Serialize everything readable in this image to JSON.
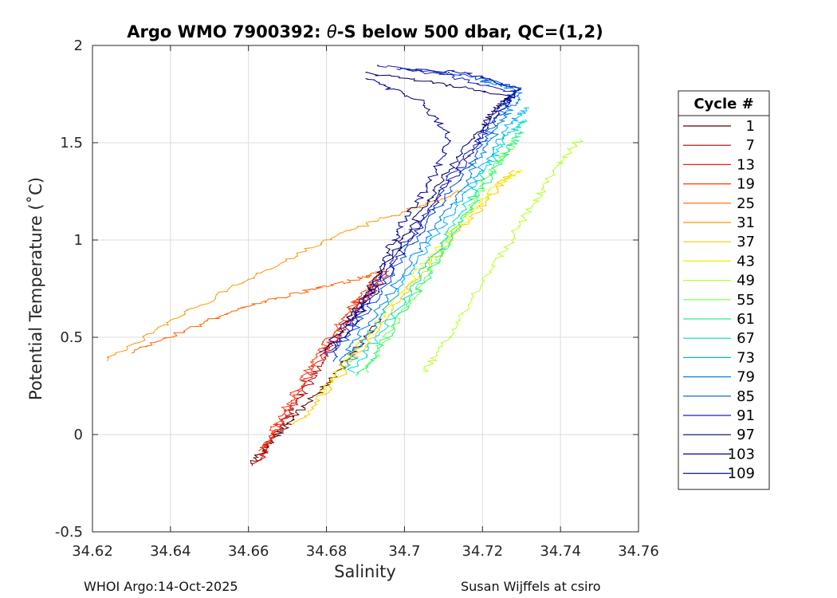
{
  "chart_data": {
    "type": "line",
    "title_prefix": "Argo WMO 7900392: ",
    "title_theta": "θ",
    "title_suffix": "-S below 500 dbar,  QC=(1,2)",
    "xlabel": "Salinity",
    "ylabel": "Potential Temperature (˚C)",
    "xlim": [
      34.62,
      34.76
    ],
    "ylim": [
      -0.5,
      2
    ],
    "xticks": [
      "34.62",
      "34.64",
      "34.66",
      "34.68",
      "34.7",
      "34.72",
      "34.74",
      "34.76"
    ],
    "xtick_values": [
      34.62,
      34.64,
      34.66,
      34.68,
      34.7,
      34.72,
      34.74,
      34.76
    ],
    "yticks": [
      "-0.5",
      "0",
      "0.5",
      "1",
      "1.5",
      "2"
    ],
    "ytick_values": [
      -0.5,
      0,
      0.5,
      1,
      1.5,
      2
    ],
    "grid": true,
    "legend": {
      "title": "Cycle #",
      "placement": "right",
      "entries": [
        {
          "label": "1",
          "color": "#5a0000"
        },
        {
          "label": "7",
          "color": "#b40000"
        },
        {
          "label": "13",
          "color": "#e61e1e"
        },
        {
          "label": "19",
          "color": "#ff3a00"
        },
        {
          "label": "25",
          "color": "#ff6400"
        },
        {
          "label": "31",
          "color": "#ff9600"
        },
        {
          "label": "37",
          "color": "#ffc800"
        },
        {
          "label": "43",
          "color": "#f0f000"
        },
        {
          "label": "49",
          "color": "#b4ff28"
        },
        {
          "label": "55",
          "color": "#6eff46"
        },
        {
          "label": "61",
          "color": "#28f08c"
        },
        {
          "label": "67",
          "color": "#00dcc8"
        },
        {
          "label": "73",
          "color": "#00b4ff"
        },
        {
          "label": "79",
          "color": "#0082e6"
        },
        {
          "label": "85",
          "color": "#0050dc"
        },
        {
          "label": "91",
          "color": "#1e1eb4"
        },
        {
          "label": "97",
          "color": "#000064"
        },
        {
          "label": "103",
          "color": "#00008c"
        },
        {
          "label": "109",
          "color": "#0a14a0"
        }
      ]
    },
    "series": [
      {
        "name": "1",
        "color": "#5a0000",
        "salinity": [
          34.661,
          34.665,
          34.67,
          34.676,
          34.682,
          34.688,
          34.694
        ],
        "theta": [
          -0.15,
          -0.05,
          0.05,
          0.18,
          0.3,
          0.45,
          0.6
        ]
      },
      {
        "name": "7",
        "color": "#b40000",
        "salinity": [
          34.662,
          34.666,
          34.671,
          34.676,
          34.681,
          34.687,
          34.693
        ],
        "theta": [
          -0.16,
          -0.02,
          0.12,
          0.28,
          0.45,
          0.62,
          0.78
        ]
      },
      {
        "name": "13",
        "color": "#e61e1e",
        "salinity": [
          34.663,
          34.667,
          34.672,
          34.677,
          34.683,
          34.69,
          34.696
        ],
        "theta": [
          -0.12,
          0.02,
          0.18,
          0.35,
          0.52,
          0.7,
          0.84
        ]
      },
      {
        "name": "19",
        "color": "#ff3a00",
        "salinity": [
          34.664,
          34.668,
          34.674,
          34.68,
          34.686,
          34.691,
          34.694
        ],
        "theta": [
          -0.08,
          0.08,
          0.28,
          0.48,
          0.64,
          0.76,
          0.84
        ]
      },
      {
        "name": "25",
        "color": "#ff6400",
        "salinity": [
          34.63,
          34.645,
          34.66,
          34.675,
          34.688,
          34.695
        ],
        "theta": [
          0.42,
          0.55,
          0.66,
          0.74,
          0.8,
          0.84
        ]
      },
      {
        "name": "31",
        "color": "#ff9600",
        "salinity": [
          34.623,
          34.64,
          34.66,
          34.68,
          34.7,
          34.715
        ],
        "theta": [
          0.38,
          0.58,
          0.8,
          1.0,
          1.15,
          1.25
        ]
      },
      {
        "name": "37",
        "color": "#ffc800",
        "salinity": [
          34.672,
          34.68,
          34.69,
          34.7,
          34.712,
          34.722,
          34.728
        ],
        "theta": [
          0.05,
          0.22,
          0.46,
          0.72,
          1.0,
          1.22,
          1.36
        ]
      },
      {
        "name": "43",
        "color": "#f0f000",
        "salinity": [
          34.678,
          34.686,
          34.696,
          34.706,
          34.716,
          34.724,
          34.73
        ],
        "theta": [
          0.2,
          0.4,
          0.65,
          0.9,
          1.12,
          1.28,
          1.36
        ]
      },
      {
        "name": "49",
        "color": "#b4ff28",
        "salinity": [
          34.705,
          34.712,
          34.72,
          34.728,
          34.734,
          34.74,
          34.745
        ],
        "theta": [
          0.32,
          0.52,
          0.78,
          1.02,
          1.22,
          1.4,
          1.52
        ]
      },
      {
        "name": "55",
        "color": "#6eff46",
        "salinity": [
          34.69,
          34.698,
          34.707,
          34.714,
          34.72,
          34.725,
          34.728
        ],
        "theta": [
          0.32,
          0.58,
          0.85,
          1.08,
          1.28,
          1.42,
          1.5
        ]
      },
      {
        "name": "61",
        "color": "#28f08c",
        "salinity": [
          34.688,
          34.696,
          34.706,
          34.715,
          34.722,
          34.727,
          34.73
        ],
        "theta": [
          0.3,
          0.52,
          0.82,
          1.1,
          1.32,
          1.48,
          1.56
        ]
      },
      {
        "name": "67",
        "color": "#00dcc8",
        "salinity": [
          34.686,
          34.695,
          34.705,
          34.714,
          34.721,
          34.727,
          34.731
        ],
        "theta": [
          0.32,
          0.55,
          0.85,
          1.12,
          1.36,
          1.55,
          1.62
        ]
      },
      {
        "name": "73",
        "color": "#00b4ff",
        "salinity": [
          34.685,
          34.693,
          34.703,
          34.713,
          34.721,
          34.727,
          34.732
        ],
        "theta": [
          0.34,
          0.58,
          0.88,
          1.16,
          1.4,
          1.6,
          1.68
        ]
      },
      {
        "name": "79",
        "color": "#0082e6",
        "salinity": [
          34.683,
          34.692,
          34.702,
          34.712,
          34.72,
          34.726,
          34.73,
          34.72
        ],
        "theta": [
          0.36,
          0.6,
          0.9,
          1.18,
          1.44,
          1.64,
          1.76,
          1.82
        ]
      },
      {
        "name": "85",
        "color": "#0050dc",
        "salinity": [
          34.681,
          34.69,
          34.7,
          34.71,
          34.719,
          34.725,
          34.729,
          34.715,
          34.7
        ],
        "theta": [
          0.38,
          0.62,
          0.92,
          1.2,
          1.46,
          1.66,
          1.78,
          1.85,
          1.88
        ]
      },
      {
        "name": "91",
        "color": "#1e1eb4",
        "salinity": [
          34.68,
          34.689,
          34.699,
          34.709,
          34.718,
          34.724,
          34.728,
          34.712,
          34.693
        ],
        "theta": [
          0.4,
          0.64,
          0.95,
          1.24,
          1.5,
          1.68,
          1.76,
          1.84,
          1.9
        ]
      },
      {
        "name": "97",
        "color": "#000064",
        "salinity": [
          34.679,
          34.688,
          34.698,
          34.708,
          34.717,
          34.723,
          34.727,
          34.71,
          34.69
        ],
        "theta": [
          0.42,
          0.66,
          0.96,
          1.26,
          1.52,
          1.66,
          1.74,
          1.8,
          1.86
        ]
      },
      {
        "name": "103",
        "color": "#00008c",
        "salinity": [
          34.686,
          34.692,
          34.696,
          34.7,
          34.706,
          34.712,
          34.704,
          34.69
        ],
        "theta": [
          0.55,
          0.75,
          0.95,
          1.1,
          1.28,
          1.52,
          1.72,
          1.83
        ]
      },
      {
        "name": "109",
        "color": "#0a14a0",
        "salinity": [
          34.682,
          34.691,
          34.701,
          34.711,
          34.72,
          34.726,
          34.729,
          34.715,
          34.698
        ],
        "theta": [
          0.44,
          0.68,
          0.98,
          1.28,
          1.54,
          1.7,
          1.78,
          1.86,
          1.88
        ]
      }
    ]
  },
  "footer": {
    "left": "WHOI Argo:14-Oct-2025",
    "right": "Susan Wijffels at csiro"
  }
}
